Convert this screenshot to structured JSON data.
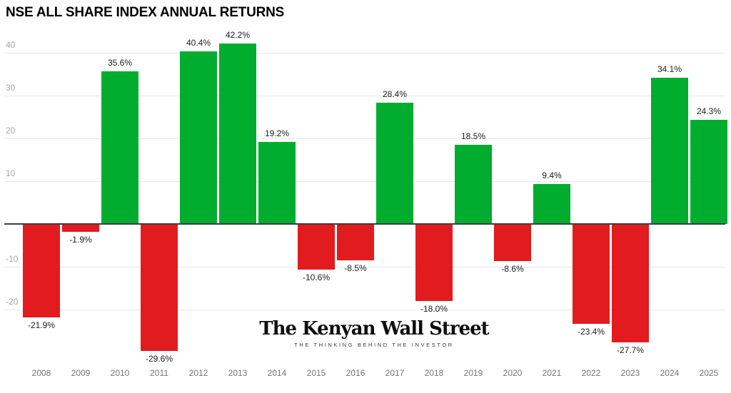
{
  "title": "NSE ALL SHARE INDEX ANNUAL RETURNS",
  "watermark": {
    "name": "The Kenyan Wall Street",
    "tagline": "THE THINKING BEHIND THE INVESTOR"
  },
  "colors": {
    "positive": "#00ad2f",
    "negative": "#e11b1e",
    "grid": "#e8e8e8",
    "zero_line": "#3d3d3d",
    "y_label": "#a6a6a6",
    "x_label": "#757575",
    "value_label": "#1c1c1c",
    "title": "#000000"
  },
  "chart_data": {
    "type": "bar",
    "title": "NSE ALL SHARE INDEX ANNUAL RETURNS",
    "categories": [
      "2008",
      "2009",
      "2010",
      "2011",
      "2012",
      "2013",
      "2014",
      "2015",
      "2016",
      "2017",
      "2018",
      "2019",
      "2020",
      "2021",
      "2022",
      "2023",
      "2024",
      "2025"
    ],
    "values": [
      -21.9,
      -1.9,
      35.6,
      -29.6,
      40.4,
      42.2,
      19.2,
      -10.6,
      -8.5,
      28.4,
      -18.0,
      18.5,
      -8.6,
      9.4,
      -23.4,
      -27.7,
      34.1,
      24.3
    ],
    "value_labels": [
      "-21.9%",
      "-1.9%",
      "35.6%",
      "-29.6%",
      "40.4%",
      "42.2%",
      "19.2%",
      "-10.6%",
      "-8.5%",
      "28.4%",
      "-18.0%",
      "18.5%",
      "-8.6%",
      "9.4%",
      "-23.4%",
      "-27.7%",
      "34.1%",
      "24.3%"
    ],
    "y_ticks": [
      {
        "value": 40,
        "label": "40"
      },
      {
        "value": 30,
        "label": "30"
      },
      {
        "value": 20,
        "label": "20"
      },
      {
        "value": 10,
        "label": "10"
      },
      {
        "value": -10,
        "label": "-10"
      },
      {
        "value": -20,
        "label": "-20"
      }
    ],
    "xlabel": "",
    "ylabel": "",
    "ylim": [
      -32,
      45
    ],
    "grid": true,
    "legend_position": "none",
    "positive_color": "#00ad2f",
    "negative_color": "#e11b1e"
  }
}
